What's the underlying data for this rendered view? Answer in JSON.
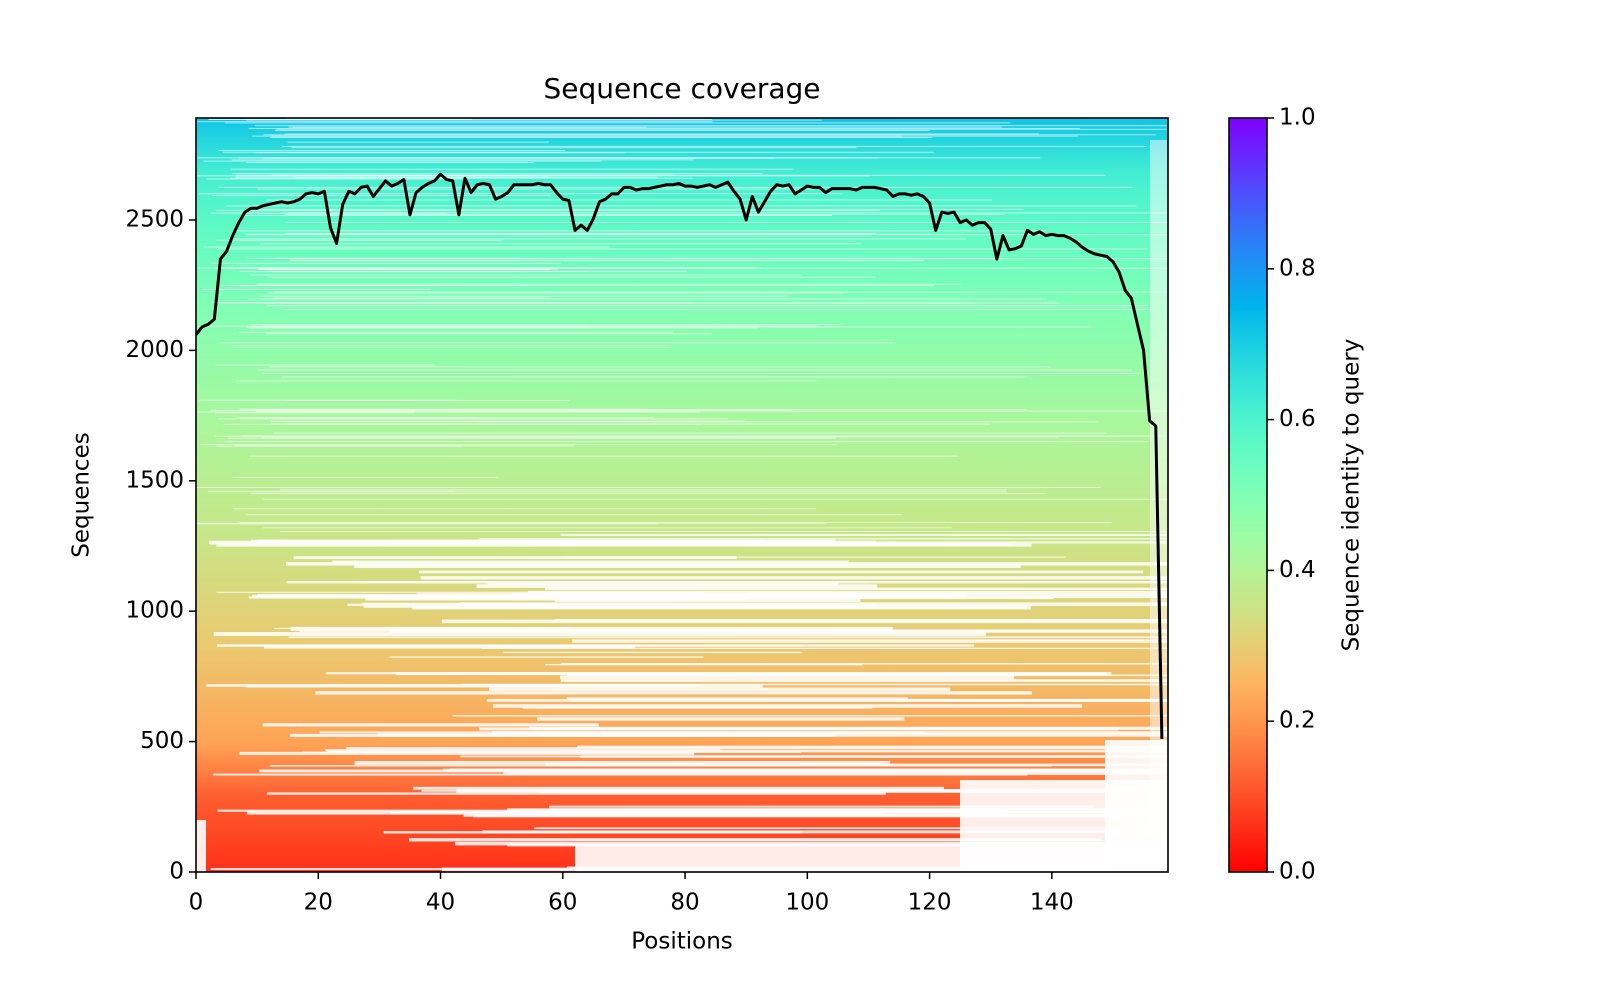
{
  "chart_data": {
    "type": "coverage",
    "title": "Sequence coverage",
    "xlabel": "Positions",
    "ylabel": "Sequences",
    "xlim": [
      0,
      159
    ],
    "xticks": [
      0,
      20,
      40,
      60,
      80,
      100,
      120,
      140
    ],
    "ylim": [
      0,
      2891
    ],
    "yticks": [
      0,
      500,
      1000,
      1500,
      2000,
      2500
    ],
    "line_color": "#000000",
    "x": [
      0,
      1,
      2,
      3,
      4,
      5,
      6,
      7,
      8,
      9,
      10,
      11,
      12,
      13,
      14,
      15,
      16,
      17,
      18,
      19,
      20,
      21,
      22,
      23,
      24,
      25,
      26,
      27,
      28,
      29,
      30,
      31,
      32,
      33,
      34,
      35,
      36,
      37,
      38,
      39,
      40,
      41,
      42,
      43,
      44,
      45,
      46,
      47,
      48,
      49,
      50,
      51,
      52,
      53,
      54,
      55,
      56,
      57,
      58,
      59,
      60,
      61,
      62,
      63,
      64,
      65,
      66,
      67,
      68,
      69,
      70,
      71,
      72,
      73,
      74,
      75,
      76,
      77,
      78,
      79,
      80,
      81,
      82,
      83,
      84,
      85,
      86,
      87,
      88,
      89,
      90,
      91,
      92,
      93,
      94,
      95,
      96,
      97,
      98,
      99,
      100,
      101,
      102,
      103,
      104,
      105,
      106,
      107,
      108,
      109,
      110,
      111,
      112,
      113,
      114,
      115,
      116,
      117,
      118,
      119,
      120,
      121,
      122,
      123,
      124,
      125,
      126,
      127,
      128,
      129,
      130,
      131,
      132,
      133,
      134,
      135,
      136,
      137,
      138,
      139,
      140,
      141,
      142,
      143,
      144,
      145,
      146,
      147,
      148,
      149,
      150,
      151,
      152,
      153,
      154,
      155,
      156,
      157,
      158
    ],
    "values": [
      2060,
      2090,
      2100,
      2120,
      2350,
      2380,
      2440,
      2490,
      2530,
      2545,
      2545,
      2555,
      2560,
      2565,
      2570,
      2565,
      2570,
      2580,
      2600,
      2605,
      2600,
      2610,
      2470,
      2410,
      2560,
      2610,
      2600,
      2625,
      2630,
      2590,
      2620,
      2650,
      2630,
      2640,
      2655,
      2520,
      2605,
      2625,
      2640,
      2650,
      2675,
      2655,
      2650,
      2520,
      2660,
      2605,
      2635,
      2640,
      2635,
      2580,
      2590,
      2605,
      2635,
      2635,
      2635,
      2635,
      2640,
      2635,
      2635,
      2605,
      2580,
      2575,
      2460,
      2480,
      2460,
      2505,
      2570,
      2580,
      2600,
      2600,
      2625,
      2625,
      2615,
      2620,
      2620,
      2625,
      2630,
      2635,
      2635,
      2640,
      2630,
      2630,
      2625,
      2630,
      2635,
      2625,
      2635,
      2645,
      2610,
      2580,
      2500,
      2590,
      2530,
      2570,
      2610,
      2635,
      2630,
      2635,
      2600,
      2615,
      2630,
      2625,
      2625,
      2605,
      2620,
      2620,
      2620,
      2620,
      2615,
      2625,
      2625,
      2625,
      2620,
      2615,
      2590,
      2600,
      2600,
      2595,
      2600,
      2590,
      2565,
      2460,
      2530,
      2525,
      2530,
      2490,
      2500,
      2480,
      2490,
      2490,
      2465,
      2350,
      2440,
      2385,
      2390,
      2400,
      2460,
      2445,
      2455,
      2440,
      2445,
      2440,
      2440,
      2430,
      2415,
      2395,
      2380,
      2370,
      2365,
      2360,
      2340,
      2300,
      2230,
      2200,
      2100,
      2000,
      1730,
      1710,
      510
    ],
    "colorbar": {
      "label": "Sequence identity to query",
      "colormap": "rainbow_r",
      "lim": [
        0,
        1
      ],
      "ticks": [
        {
          "value": 0,
          "label": "0.0"
        },
        {
          "value": 0.2,
          "label": "0.2"
        },
        {
          "value": 0.4,
          "label": "0.4"
        },
        {
          "value": 0.6,
          "label": "0.6"
        },
        {
          "value": 0.8,
          "label": "0.8"
        },
        {
          "value": 1,
          "label": "1.0"
        }
      ]
    }
  }
}
